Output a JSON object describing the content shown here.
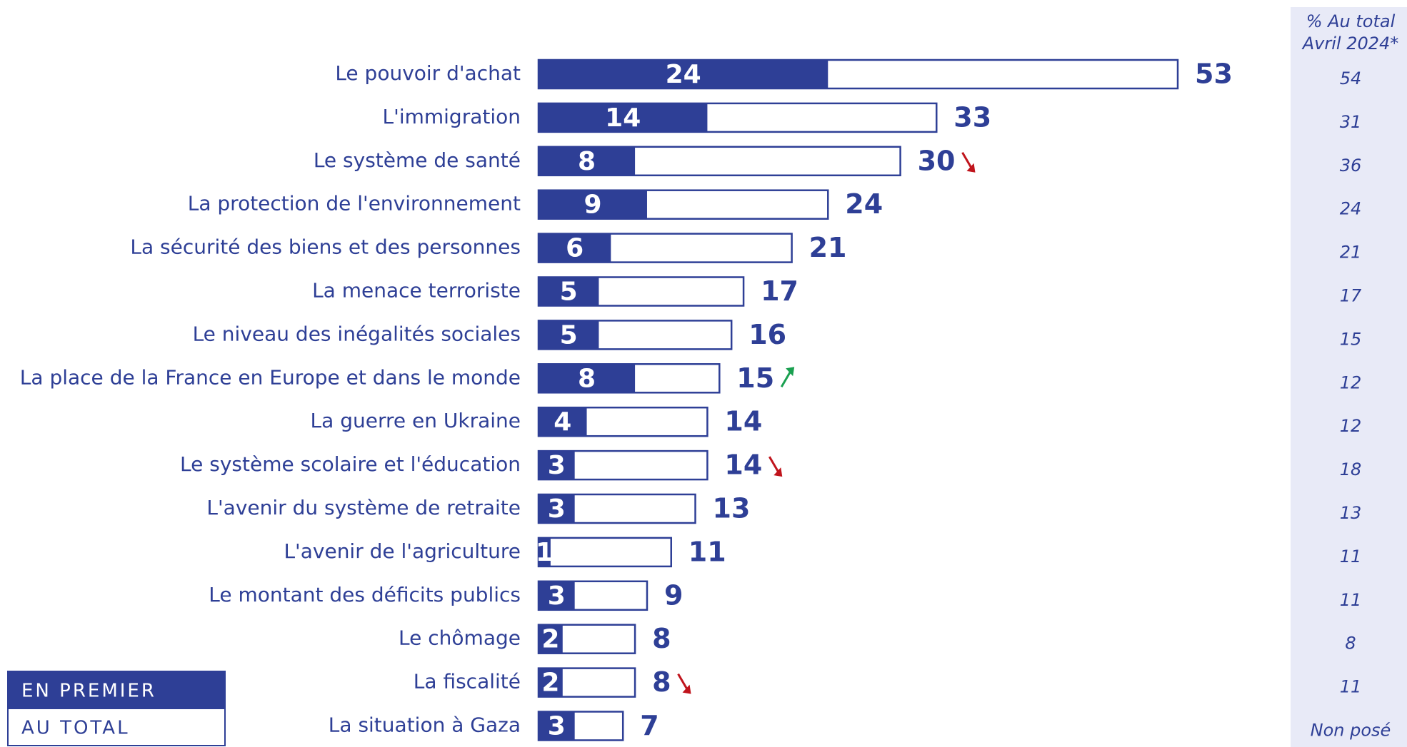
{
  "chart_data": {
    "type": "bar",
    "orientation": "horizontal",
    "categories": [
      "Le pouvoir d'achat",
      "L'immigration",
      "Le système de santé",
      "La protection de l'environnement",
      "La sécurité des biens et des personnes",
      "La menace terroriste",
      "Le niveau des inégalités sociales",
      "La place de la France en Europe et dans le monde",
      "La guerre en Ukraine",
      "Le système scolaire et l'éducation",
      "L'avenir du système de retraite",
      "L'avenir de l'agriculture",
      "Le montant des déficits publics",
      "Le chômage",
      "La fiscalité",
      "La situation à Gaza"
    ],
    "series": [
      {
        "name": "EN PREMIER",
        "color": "#2e3f96",
        "values": [
          24,
          14,
          8,
          9,
          6,
          5,
          5,
          8,
          4,
          3,
          3,
          1,
          3,
          2,
          2,
          3
        ]
      },
      {
        "name": "AU TOTAL",
        "color": "#2e3f96",
        "values": [
          53,
          33,
          30,
          24,
          21,
          17,
          16,
          15,
          14,
          14,
          13,
          11,
          9,
          8,
          8,
          7
        ]
      }
    ],
    "trends": [
      null,
      null,
      "down",
      null,
      null,
      null,
      null,
      "up",
      null,
      "down",
      null,
      null,
      null,
      null,
      "down",
      null
    ],
    "trend_colors": {
      "down": "#c0141c",
      "up": "#1aa050"
    },
    "comparison_title": [
      "% Au total",
      "Avril 2024*"
    ],
    "comparison_values": [
      54,
      31,
      36,
      24,
      21,
      17,
      15,
      12,
      12,
      18,
      13,
      11,
      11,
      8,
      11,
      "Non posé"
    ],
    "comparison_background": "#e8eaf7",
    "xlim": [
      0,
      53
    ],
    "legend": "bottom-left"
  }
}
